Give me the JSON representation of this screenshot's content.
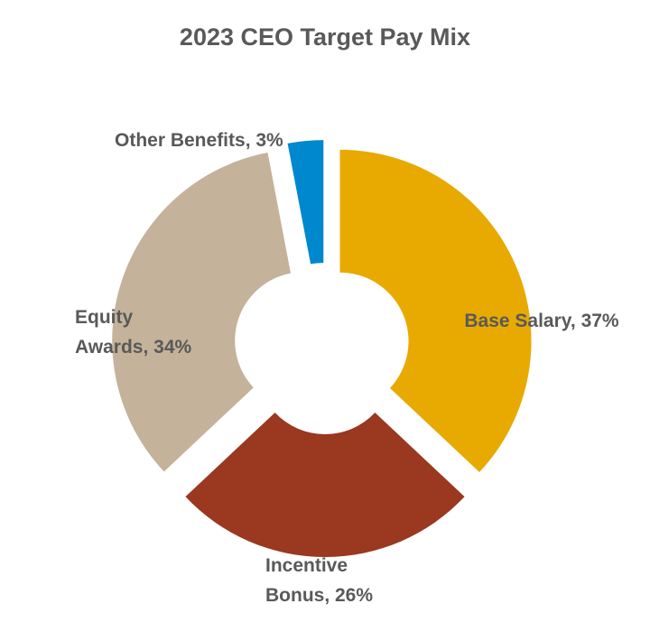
{
  "chart_data": {
    "type": "pie",
    "title": "2023 CEO Target Pay Mix",
    "donut": true,
    "exploded": true,
    "slices": [
      {
        "name": "Base Salary",
        "value": 37,
        "color": "#E8A900",
        "label_lines": [
          "Base Salary, 37%"
        ]
      },
      {
        "name": "Incentive Bonus",
        "value": 26,
        "color": "#9A3820",
        "label_lines": [
          "Incentive",
          "Bonus, 26%"
        ]
      },
      {
        "name": "Equity Awards",
        "value": 34,
        "color": "#C4B29A",
        "label_lines": [
          "Equity",
          "Awards, 34%"
        ]
      },
      {
        "name": "Other Benefits",
        "value": 3,
        "color": "#0088CE",
        "label_lines": [
          "Other Benefits, 3%"
        ]
      }
    ]
  }
}
